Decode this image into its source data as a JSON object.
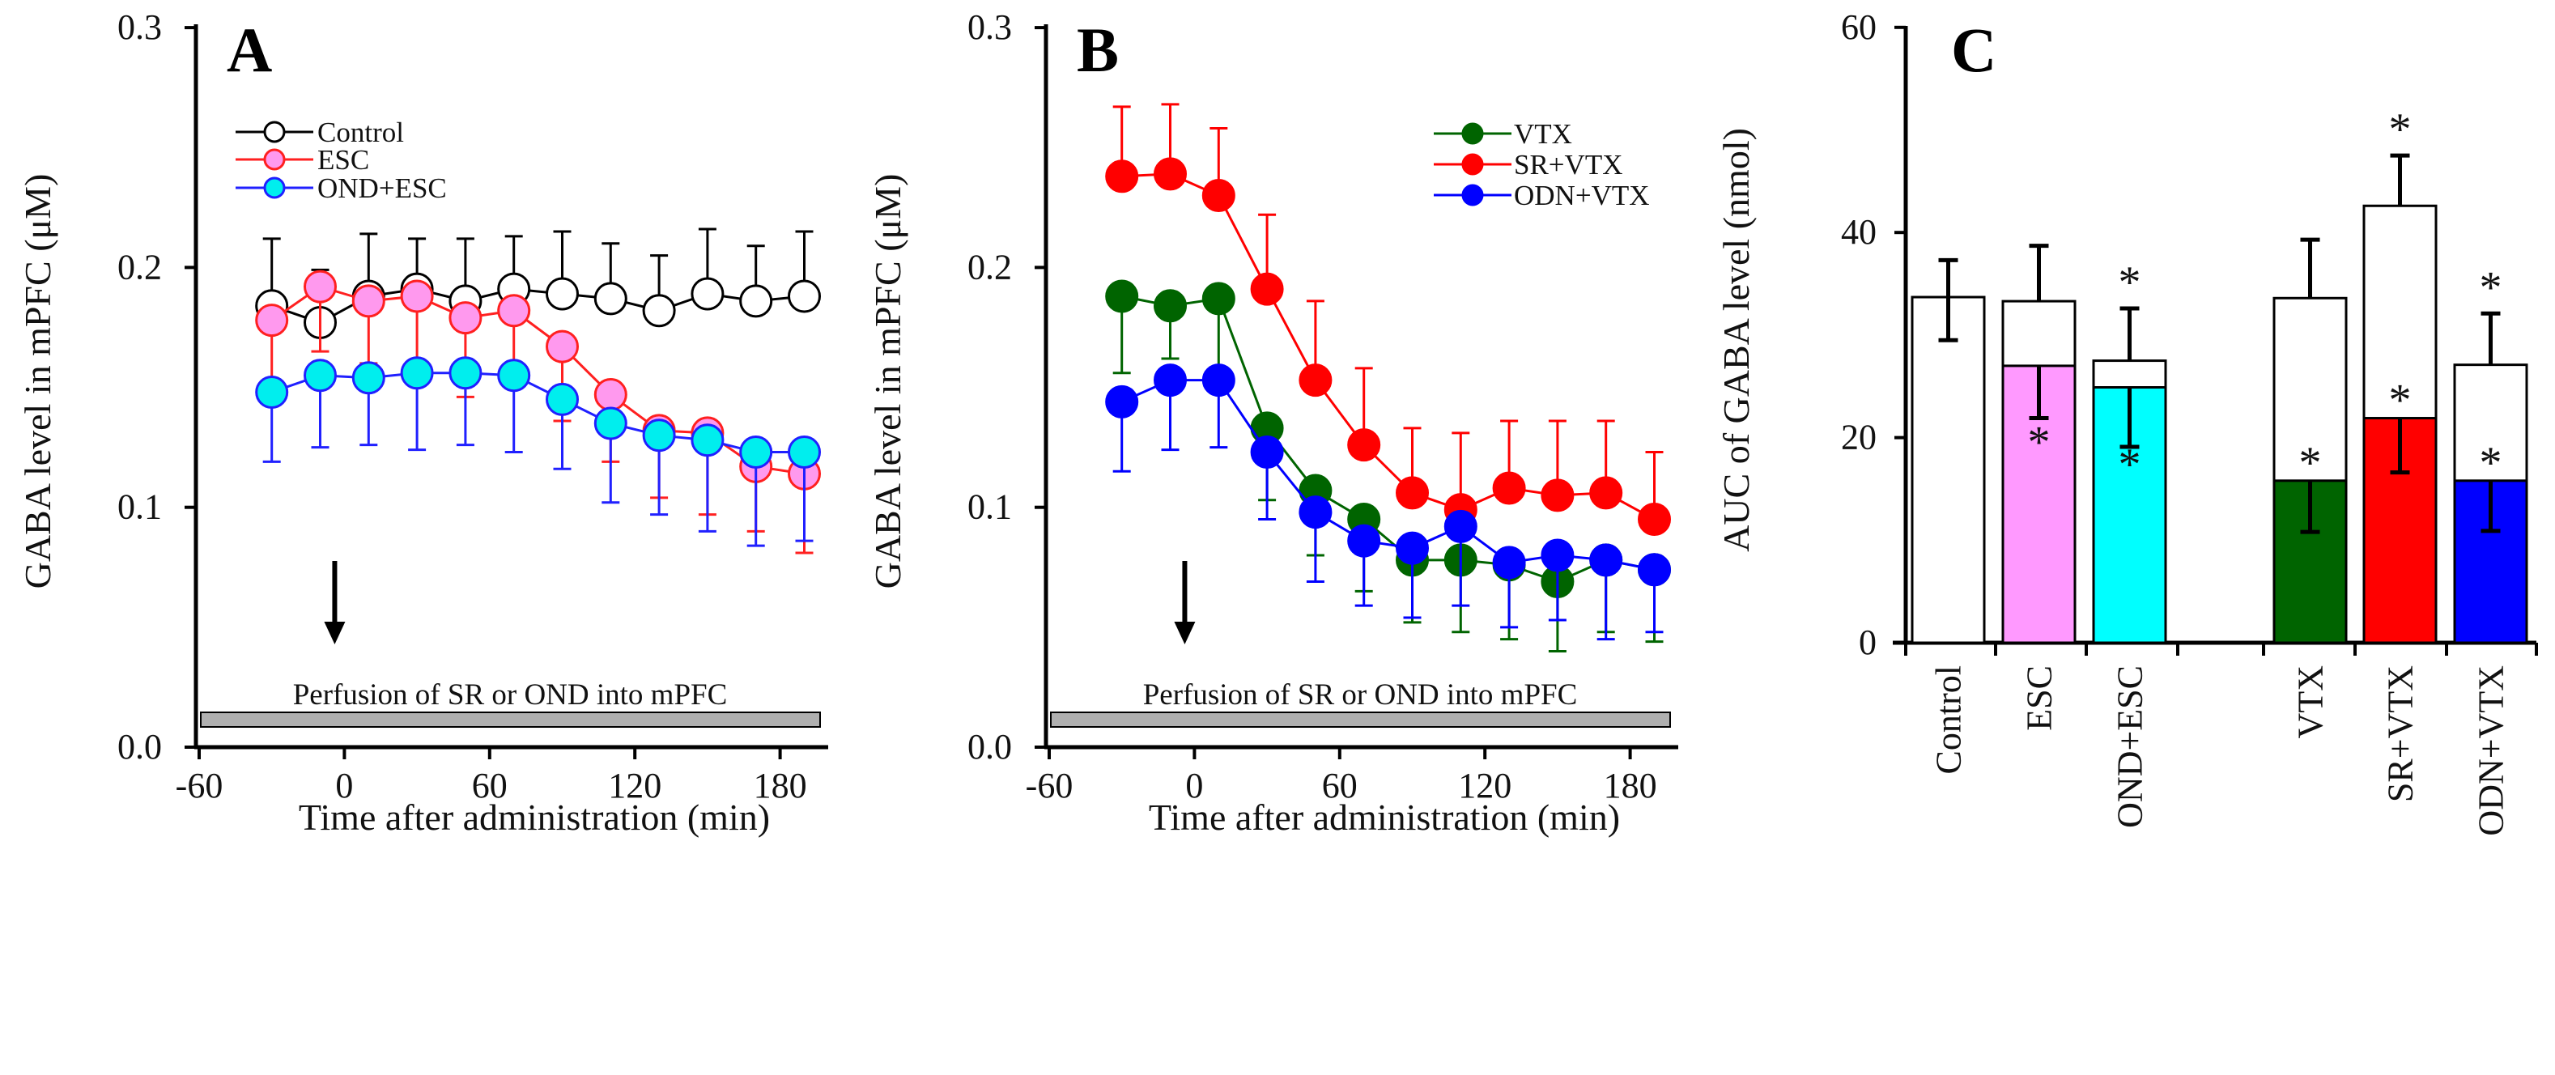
{
  "chart_data": [
    {
      "panel": "A",
      "type": "line",
      "xlabel": "Time after administration (min)",
      "ylabel": "GABA level in mPFC (μM)",
      "xlim": [
        -60,
        195
      ],
      "ylim": [
        0,
        0.3
      ],
      "xticks": [
        "-60",
        "0",
        "60",
        "120",
        "180"
      ],
      "yticks": [
        "0.0",
        "0.1",
        "0.2",
        "0.3"
      ],
      "annotation": "Perfusion of SR or OND into mPFC",
      "legend_position": "top-left",
      "x": [
        -30,
        -10,
        10,
        30,
        50,
        70,
        90,
        110,
        130,
        150,
        170,
        190
      ],
      "series": [
        {
          "name": "Control",
          "line": "#000000",
          "fill": "#ffffff",
          "err_dir": "up",
          "values": [
            0.184,
            0.177,
            0.188,
            0.191,
            0.186,
            0.191,
            0.189,
            0.187,
            0.182,
            0.189,
            0.186,
            0.188
          ],
          "err": [
            0.212,
            0.199,
            0.214,
            0.212,
            0.212,
            0.213,
            0.215,
            0.21,
            0.205,
            0.216,
            0.209,
            0.215
          ]
        },
        {
          "name": "ESC",
          "line": "#ff2020",
          "fill": "#ff99ee",
          "err_dir": "down",
          "values": [
            0.178,
            0.192,
            0.186,
            0.188,
            0.179,
            0.182,
            0.167,
            0.147,
            0.132,
            0.131,
            0.117,
            0.114
          ],
          "err": [
            0.15,
            0.165,
            0.16,
            0.16,
            0.146,
            0.155,
            0.136,
            0.119,
            0.104,
            0.097,
            0.09,
            0.081
          ]
        },
        {
          "name": "OND+ESC",
          "line": "#2020ff",
          "fill": "#00eeee",
          "err_dir": "down",
          "values": [
            0.148,
            0.155,
            0.154,
            0.156,
            0.156,
            0.155,
            0.145,
            0.135,
            0.13,
            0.128,
            0.123,
            0.123
          ],
          "err": [
            0.119,
            0.125,
            0.126,
            0.124,
            0.126,
            0.123,
            0.116,
            0.102,
            0.097,
            0.09,
            0.084,
            0.086
          ]
        }
      ]
    },
    {
      "panel": "B",
      "type": "line",
      "xlabel": "Time after administration (min)",
      "ylabel": "GABA level in mPFC (μM)",
      "xlim": [
        -60,
        195
      ],
      "ylim": [
        0,
        0.3
      ],
      "xticks": [
        "-60",
        "0",
        "60",
        "120",
        "180"
      ],
      "yticks": [
        "0.0",
        "0.1",
        "0.2",
        "0.3"
      ],
      "annotation": "Perfusion of SR or OND into mPFC",
      "legend_position": "top-right",
      "x": [
        -30,
        -10,
        10,
        30,
        50,
        70,
        90,
        110,
        130,
        150,
        170,
        190
      ],
      "series": [
        {
          "name": "VTX",
          "line": "#006400",
          "fill": "#006400",
          "err_dir": "down",
          "values": [
            0.188,
            0.184,
            0.187,
            0.133,
            0.107,
            0.095,
            0.078,
            0.078,
            0.076,
            0.069,
            0.078,
            0.074
          ],
          "err": [
            0.156,
            0.162,
            0.158,
            0.103,
            0.08,
            0.065,
            0.052,
            0.048,
            0.045,
            0.04,
            0.048,
            0.044
          ]
        },
        {
          "name": "SR+VTX",
          "line": "#ff0000",
          "fill": "#ff0000",
          "err_dir": "up",
          "values": [
            0.238,
            0.239,
            0.23,
            0.191,
            0.153,
            0.126,
            0.106,
            0.099,
            0.108,
            0.105,
            0.106,
            0.095
          ],
          "err": [
            0.267,
            0.268,
            0.258,
            0.222,
            0.186,
            0.158,
            0.133,
            0.131,
            0.136,
            0.136,
            0.136,
            0.123
          ]
        },
        {
          "name": "ODN+VTX",
          "line": "#0000ff",
          "fill": "#0000ff",
          "err_dir": "down",
          "values": [
            0.144,
            0.153,
            0.153,
            0.123,
            0.098,
            0.086,
            0.083,
            0.092,
            0.077,
            0.08,
            0.078,
            0.074
          ],
          "err": [
            0.115,
            0.124,
            0.125,
            0.095,
            0.069,
            0.059,
            0.054,
            0.059,
            0.05,
            0.053,
            0.045,
            0.048
          ]
        }
      ]
    },
    {
      "panel": "C",
      "type": "bar",
      "ylabel": "AUC of GABA level (nmol)",
      "ylim": [
        0,
        60
      ],
      "yticks": [
        "0",
        "20",
        "40",
        "60"
      ],
      "categories": [
        "Control",
        "ESC",
        "OND+ESC",
        "VTX",
        "SR+VTX",
        "ODN+VTX"
      ],
      "total": [
        33.7,
        33.3,
        27.5,
        33.6,
        42.6,
        27.1
      ],
      "total_err_top": [
        37.3,
        38.7,
        32.6,
        39.3,
        47.5,
        32.1
      ],
      "total_err_bottom": [
        29.5,
        null,
        null,
        null,
        null,
        null
      ],
      "colored": [
        null,
        27.0,
        24.9,
        15.8,
        21.9,
        15.8
      ],
      "colored_err_bottom": [
        null,
        21.9,
        19.1,
        10.8,
        16.6,
        10.9
      ],
      "colors": [
        "#ffffff",
        "#ff99ff",
        "#00ffff",
        "#006400",
        "#ff0000",
        "#0000ff"
      ],
      "significance_total": [
        false,
        false,
        true,
        false,
        true,
        true
      ],
      "significance_colored": [
        false,
        true,
        true,
        true,
        true,
        true
      ],
      "star": "*"
    }
  ]
}
